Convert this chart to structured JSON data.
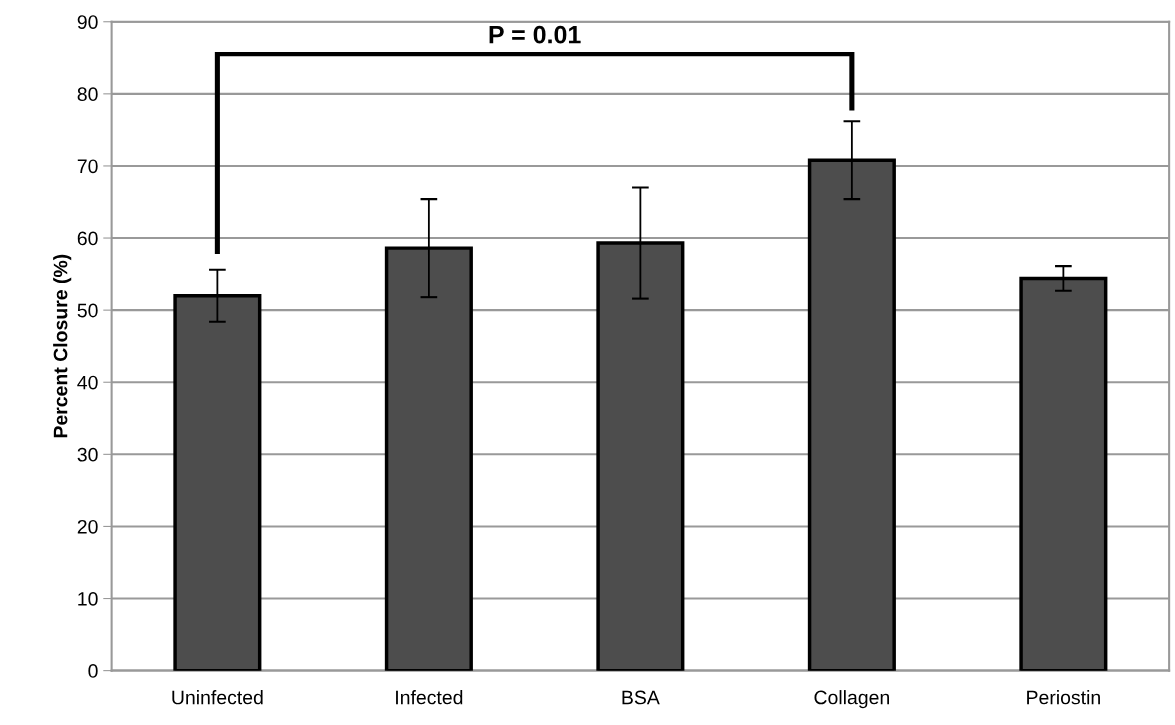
{
  "chart_data": {
    "type": "bar",
    "ylabel": "Percent Closure (%)",
    "categories": [
      "Uninfected",
      "Infected",
      "BSA",
      "Collagen",
      "Periostin"
    ],
    "values": [
      52.0,
      58.6,
      59.3,
      70.8,
      54.4
    ],
    "errors": [
      3.6,
      6.8,
      7.7,
      5.4,
      1.7
    ],
    "color": "#4d4d4d",
    "ylim": [
      0,
      90
    ],
    "yticks": [
      0,
      10,
      20,
      30,
      40,
      50,
      60,
      70,
      80,
      90
    ],
    "grid": "y",
    "annotations": [
      "P = 0.01"
    ]
  }
}
